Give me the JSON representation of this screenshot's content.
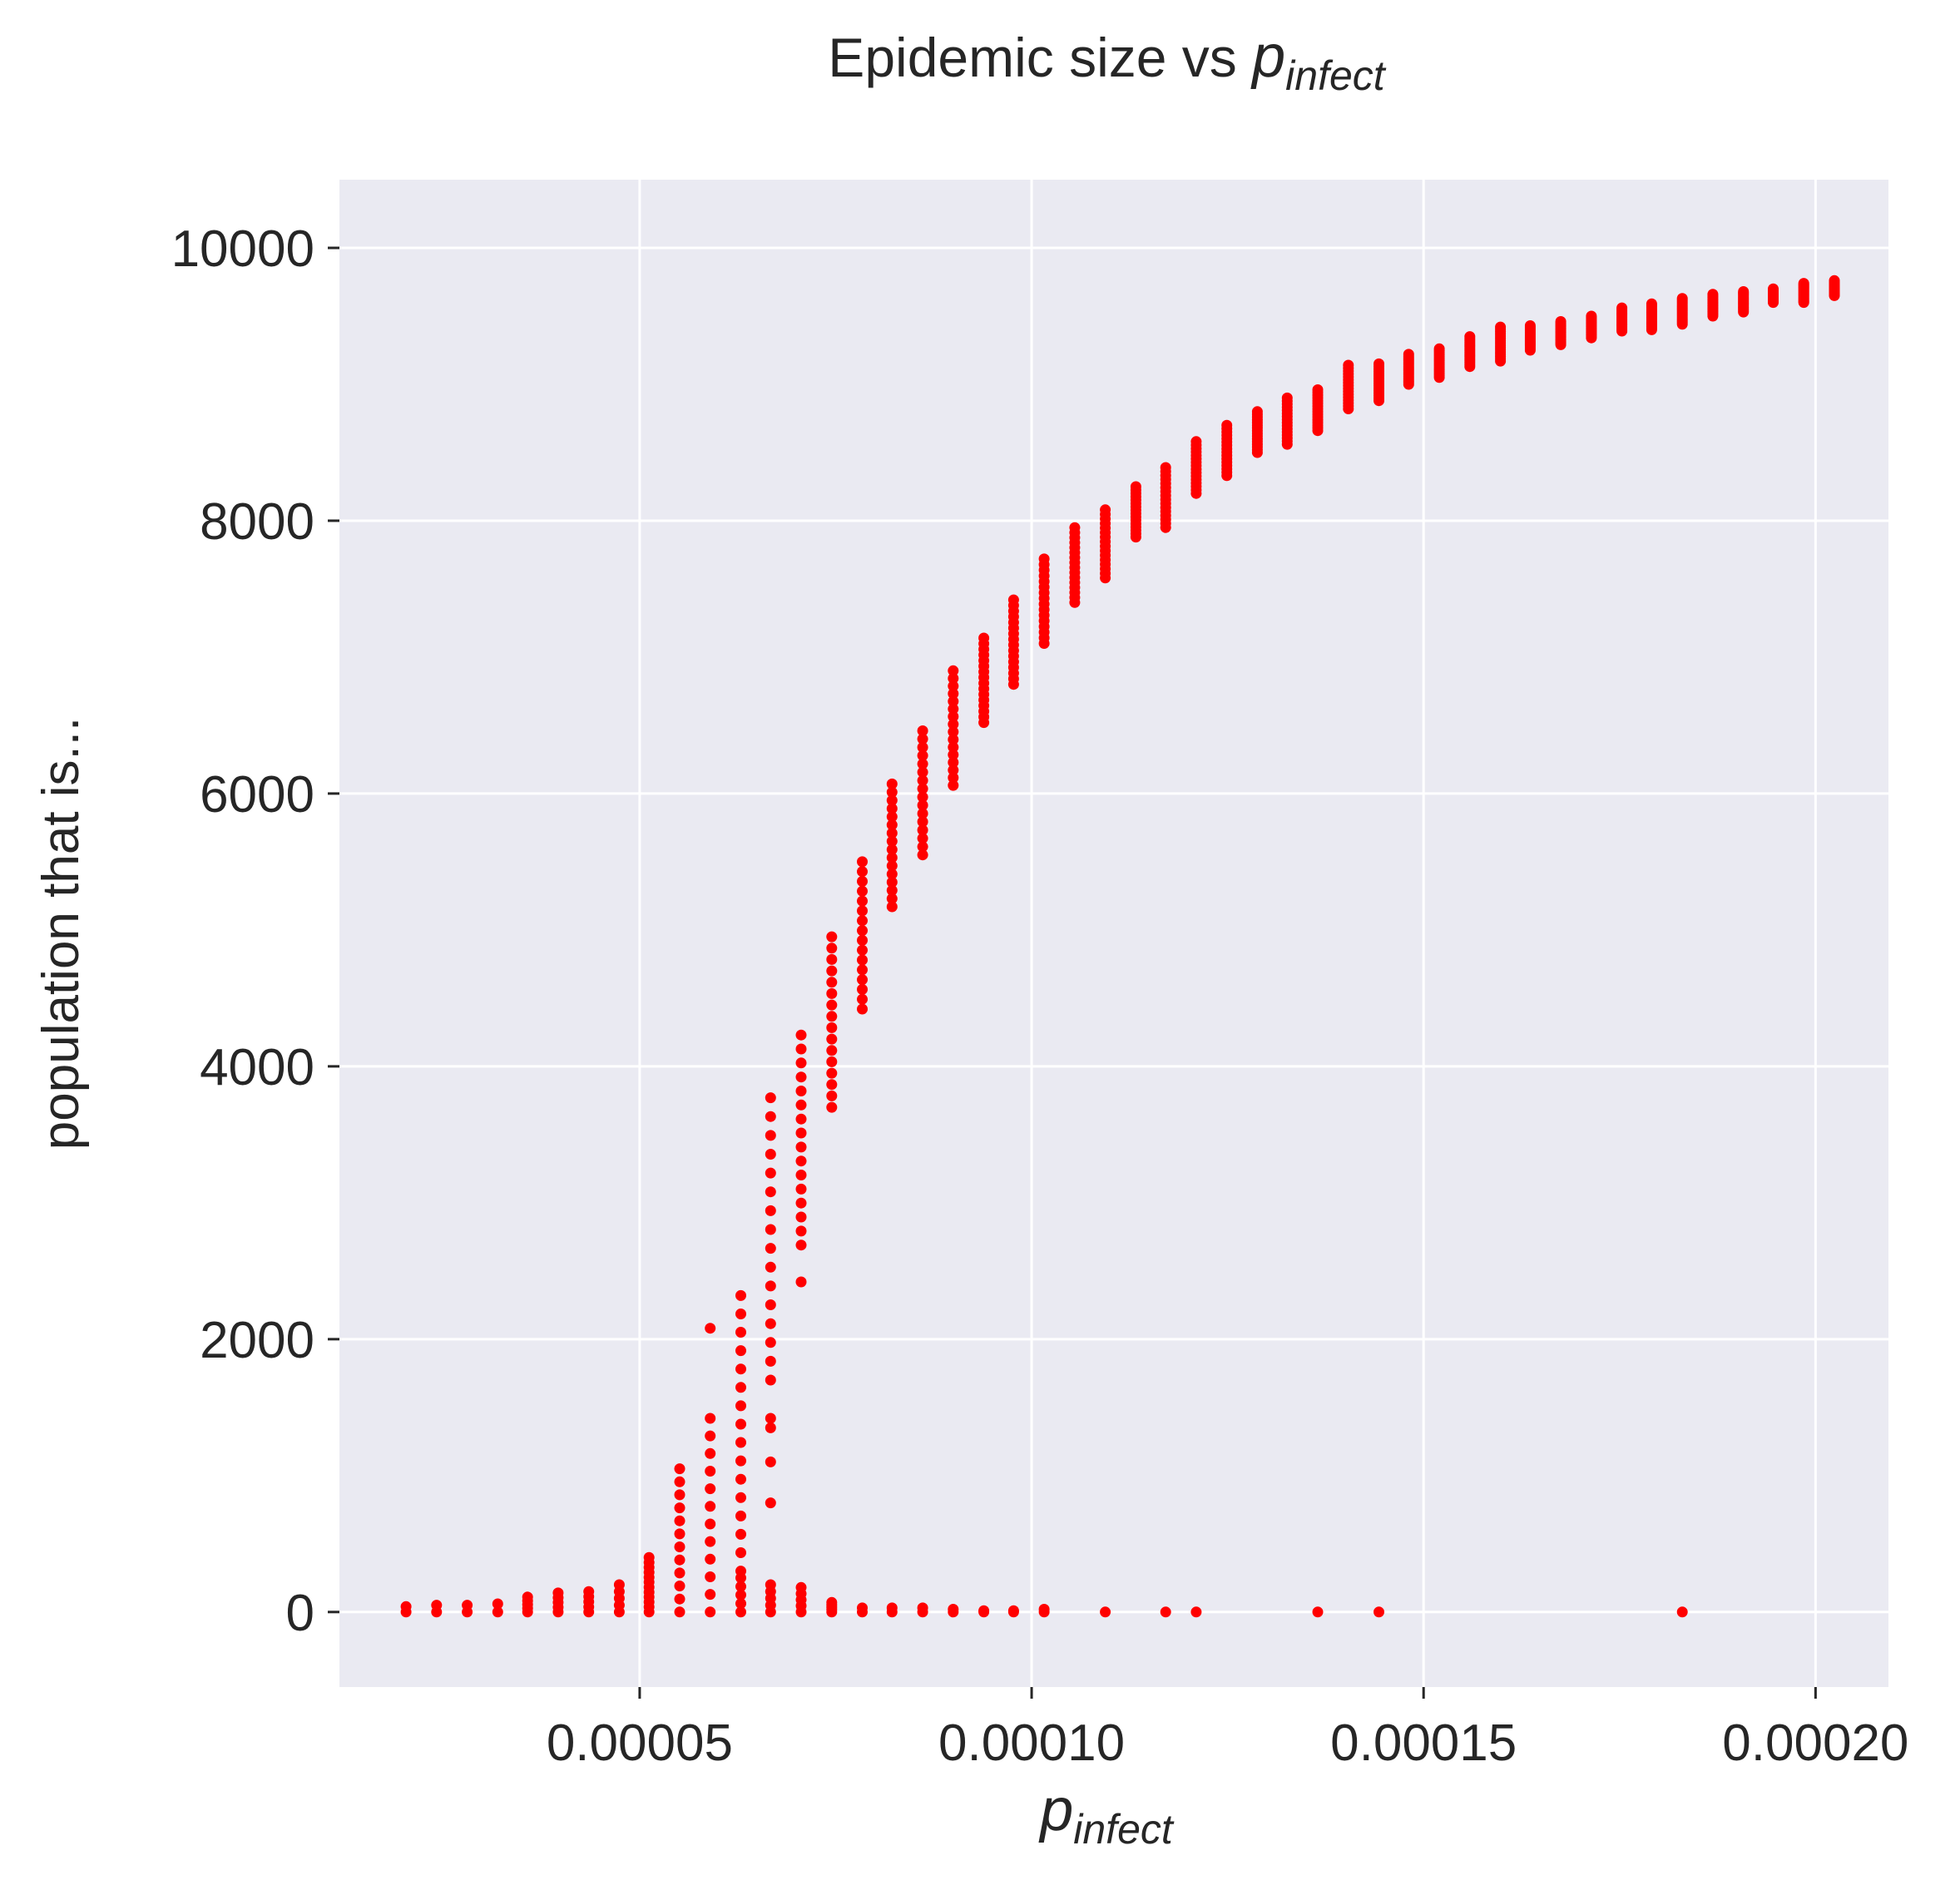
{
  "chart_data": {
    "type": "scatter",
    "title": "Epidemic size vs ",
    "title_math": {
      "base": "p",
      "subscript": "infect"
    },
    "xlabel_math": {
      "base": "p",
      "subscript": "infect"
    },
    "ylabel": "population that is...",
    "xlim": [
      1.17e-05,
      0.0002093
    ],
    "ylim": [
      -550,
      10500
    ],
    "x_ticks": [
      5e-05,
      0.0001,
      0.00015,
      0.0002
    ],
    "x_tick_labels": [
      "0.00005",
      "0.00010",
      "0.00015",
      "0.00020"
    ],
    "y_ticks": [
      0,
      2000,
      4000,
      6000,
      8000,
      10000
    ],
    "y_tick_labels": [
      "0",
      "2000",
      "4000",
      "6000",
      "8000",
      "10000"
    ],
    "grid": true,
    "marker_color": "#ff0000",
    "background_color": "#eaeaf2",
    "clusters": [
      {
        "x": 2.02e-05,
        "major": null,
        "minor": [
          0,
          40
        ]
      },
      {
        "x": 2.41e-05,
        "major": null,
        "minor": [
          0,
          50
        ]
      },
      {
        "x": 2.8e-05,
        "major": null,
        "minor": [
          0,
          50
        ]
      },
      {
        "x": 3.19e-05,
        "major": null,
        "minor": [
          0,
          60
        ]
      },
      {
        "x": 3.57e-05,
        "major": null,
        "minor": [
          0,
          110
        ]
      },
      {
        "x": 3.96e-05,
        "major": null,
        "minor": [
          0,
          140
        ]
      },
      {
        "x": 4.35e-05,
        "major": null,
        "minor": [
          0,
          150
        ]
      },
      {
        "x": 4.74e-05,
        "major": null,
        "minor": [
          0,
          200
        ]
      },
      {
        "x": 5.12e-05,
        "major": null,
        "minor": [
          0,
          400
        ]
      },
      {
        "x": 5.51e-05,
        "major": null,
        "minor": [
          0,
          1050
        ]
      },
      {
        "x": 5.9e-05,
        "major": null,
        "minor": [
          0,
          1420
        ],
        "extra": [
          2080
        ]
      },
      {
        "x": 6.29e-05,
        "major": [
          300,
          2320
        ],
        "minor": [
          0,
          250
        ]
      },
      {
        "x": 6.67e-05,
        "major": [
          1700,
          3770
        ],
        "minor": [
          0,
          200
        ],
        "extra": [
          800,
          1100,
          1350,
          1420
        ]
      },
      {
        "x": 7.06e-05,
        "major": [
          2690,
          4230
        ],
        "minor": [
          0,
          180
        ],
        "extra": [
          2420
        ]
      },
      {
        "x": 7.45e-05,
        "major": [
          3700,
          4950
        ],
        "minor": [
          0,
          70
        ]
      },
      {
        "x": 7.84e-05,
        "major": [
          4420,
          5500
        ],
        "minor": [
          0,
          30
        ]
      },
      {
        "x": 8.22e-05,
        "major": [
          5170,
          6070
        ],
        "minor": [
          0,
          30
        ]
      },
      {
        "x": 8.61e-05,
        "major": [
          5550,
          6460
        ],
        "minor": [
          0,
          30
        ]
      },
      {
        "x": 9e-05,
        "major": [
          6060,
          6900
        ],
        "minor": [
          0,
          20
        ]
      },
      {
        "x": 9.39e-05,
        "major": [
          6520,
          7140
        ],
        "minor": [
          0,
          10
        ]
      },
      {
        "x": 9.77e-05,
        "major": [
          6800,
          7420
        ],
        "minor": [
          0,
          10
        ]
      },
      {
        "x": 0.0001016,
        "major": [
          7100,
          7720
        ],
        "minor": [
          0,
          20
        ]
      },
      {
        "x": 0.0001055,
        "major": [
          7400,
          7950
        ],
        "minor": null
      },
      {
        "x": 0.0001094,
        "major": [
          7580,
          8080
        ],
        "minor": [
          0,
          5
        ]
      },
      {
        "x": 0.0001133,
        "major": [
          7880,
          8250
        ],
        "minor": null
      },
      {
        "x": 0.0001171,
        "major": [
          7950,
          8390
        ],
        "minor": [
          0,
          5
        ]
      },
      {
        "x": 0.000121,
        "major": [
          8200,
          8580
        ],
        "minor": [
          0,
          5
        ]
      },
      {
        "x": 0.0001249,
        "major": [
          8330,
          8700
        ],
        "minor": null
      },
      {
        "x": 0.0001288,
        "major": [
          8500,
          8800
        ],
        "minor": null
      },
      {
        "x": 0.0001326,
        "major": [
          8560,
          8900
        ],
        "minor": null
      },
      {
        "x": 0.0001365,
        "major": [
          8660,
          8960
        ],
        "minor": [
          0,
          5
        ]
      },
      {
        "x": 0.0001404,
        "major": [
          8820,
          9140
        ],
        "minor": null
      },
      {
        "x": 0.0001443,
        "major": [
          8880,
          9150
        ],
        "minor": [
          0,
          5
        ]
      },
      {
        "x": 0.0001481,
        "major": [
          9000,
          9220
        ],
        "minor": null
      },
      {
        "x": 0.000152,
        "major": [
          9050,
          9260
        ],
        "minor": null
      },
      {
        "x": 0.0001559,
        "major": [
          9130,
          9350
        ],
        "minor": null
      },
      {
        "x": 0.0001598,
        "major": [
          9170,
          9420
        ],
        "minor": null
      },
      {
        "x": 0.0001636,
        "major": [
          9250,
          9430
        ],
        "minor": null
      },
      {
        "x": 0.0001675,
        "major": [
          9290,
          9460
        ],
        "minor": null
      },
      {
        "x": 0.0001714,
        "major": [
          9340,
          9500
        ],
        "minor": null
      },
      {
        "x": 0.0001753,
        "major": [
          9390,
          9560
        ],
        "minor": null
      },
      {
        "x": 0.0001791,
        "major": [
          9400,
          9590
        ],
        "minor": null
      },
      {
        "x": 0.000183,
        "major": [
          9440,
          9630
        ],
        "minor": [
          0,
          5
        ]
      },
      {
        "x": 0.0001869,
        "major": [
          9500,
          9660
        ],
        "minor": null
      },
      {
        "x": 0.0001908,
        "major": [
          9530,
          9680
        ],
        "minor": null
      },
      {
        "x": 0.0001946,
        "major": [
          9600,
          9700
        ],
        "minor": null
      },
      {
        "x": 0.0001985,
        "major": [
          9600,
          9740
        ],
        "minor": null
      },
      {
        "x": 0.0002024,
        "major": [
          9650,
          9760
        ],
        "minor": null
      }
    ]
  }
}
